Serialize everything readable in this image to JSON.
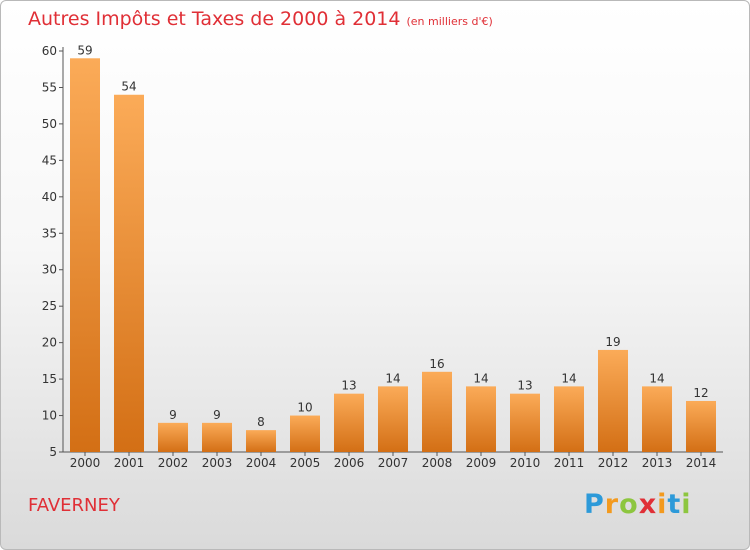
{
  "header": {
    "title": "Autres Impôts et Taxes de 2000 à 2014",
    "subtitle": "(en milliers d'€)"
  },
  "commune": "FAVERNEY",
  "logo": {
    "text": "Proxiti",
    "letters": [
      {
        "char": "P",
        "color": "#2d9ad9"
      },
      {
        "char": "r",
        "color": "#f39a1e"
      },
      {
        "char": "o",
        "color": "#8dc63f"
      },
      {
        "char": "x",
        "color": "#e02f36"
      },
      {
        "char": "i",
        "color": "#f39a1e"
      },
      {
        "char": "t",
        "color": "#2d9ad9"
      },
      {
        "char": "i",
        "color": "#8dc63f"
      }
    ]
  },
  "colors": {
    "bar_light": "#fbab58",
    "bar_dark": "#d36f15",
    "title": "#e02f36"
  },
  "chart_data": {
    "type": "bar",
    "title": "Autres Impôts et Taxes de 2000 à 2014",
    "subtitle": "(en milliers d'€)",
    "categories": [
      "2000",
      "2001",
      "2002",
      "2003",
      "2004",
      "2005",
      "2006",
      "2007",
      "2008",
      "2009",
      "2010",
      "2011",
      "2012",
      "2013",
      "2014"
    ],
    "values": [
      59,
      54,
      9,
      9,
      8,
      10,
      13,
      14,
      16,
      14,
      13,
      14,
      19,
      14,
      12
    ],
    "ylim": [
      5,
      60
    ],
    "yticks": [
      5,
      10,
      15,
      20,
      25,
      30,
      35,
      40,
      45,
      50,
      55,
      60
    ],
    "xlabel": "",
    "ylabel": "",
    "grid": false,
    "data_labels": true
  }
}
